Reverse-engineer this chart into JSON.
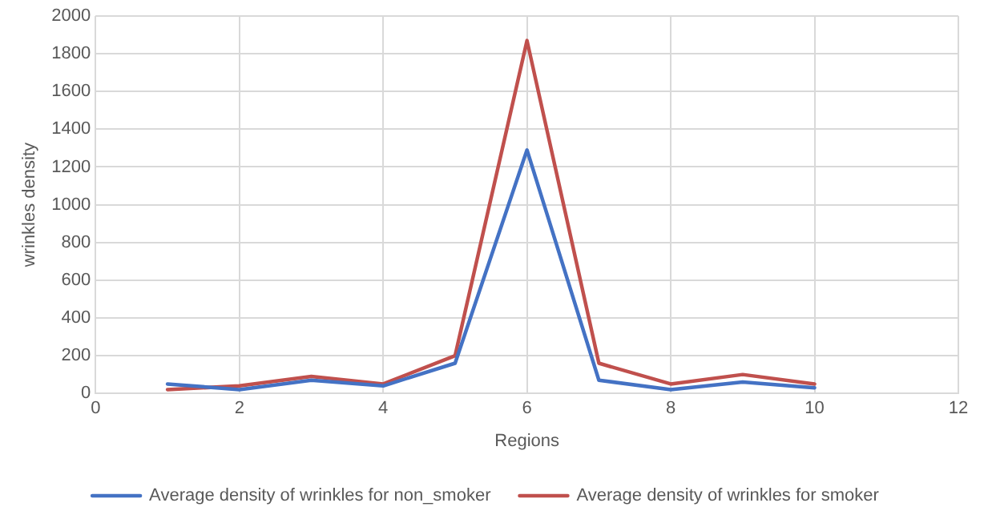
{
  "chart_data": {
    "type": "line",
    "xlabel": "Regions",
    "ylabel": "wrinkles density",
    "x": [
      1,
      2,
      3,
      4,
      5,
      6,
      7,
      8,
      9,
      10
    ],
    "series": [
      {
        "name": "Average density of wrinkles for non_smoker",
        "color": "#4472c4",
        "values": [
          50,
          20,
          70,
          40,
          160,
          1290,
          70,
          20,
          60,
          30
        ]
      },
      {
        "name": "Average density of wrinkles for smoker",
        "color": "#c0504d",
        "values": [
          20,
          40,
          90,
          50,
          200,
          1870,
          160,
          50,
          100,
          50
        ]
      }
    ],
    "xlim": [
      0,
      12
    ],
    "xticks": [
      0,
      2,
      4,
      6,
      8,
      10,
      12
    ],
    "ylim": [
      0,
      2000
    ],
    "yticks": [
      0,
      200,
      400,
      600,
      800,
      1000,
      1200,
      1400,
      1600,
      1800,
      2000
    ],
    "grid": true,
    "legend": "bottom",
    "marker": "none",
    "line_style": "solid"
  }
}
